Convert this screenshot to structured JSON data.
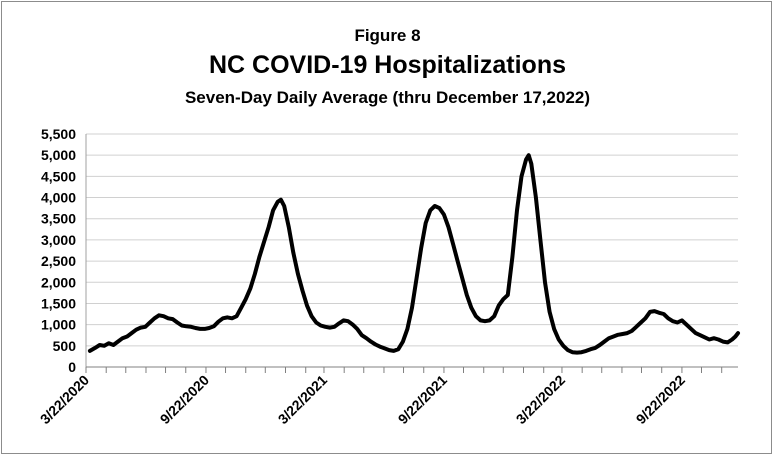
{
  "chart_data": {
    "type": "line",
    "title": "NC COVID-19 Hospitalizations",
    "figure_label": "Figure 8",
    "subtitle": "Seven-Day Daily Average (thru December 17,2022)",
    "xlabel": "",
    "ylabel": "",
    "ylim": [
      0,
      5500
    ],
    "xlim": [
      "2020-03-22",
      "2022-12-17"
    ],
    "grid": true,
    "legend": "none",
    "line_color": "#000000",
    "y_ticks": [
      "0",
      "500",
      "1,000",
      "1,500",
      "2,000",
      "2,500",
      "3,000",
      "3,500",
      "4,000",
      "4,500",
      "5,000",
      "5,500"
    ],
    "x_ticks": [
      "3/22/2020",
      "9/22/2020",
      "3/22/2021",
      "9/22/2021",
      "3/22/2022",
      "9/22/2022"
    ],
    "series": [
      {
        "points": [
          [
            "2020-03-28",
            380
          ],
          [
            "2020-04-05",
            450
          ],
          [
            "2020-04-12",
            520
          ],
          [
            "2020-04-19",
            500
          ],
          [
            "2020-04-26",
            560
          ],
          [
            "2020-05-03",
            520
          ],
          [
            "2020-05-10",
            600
          ],
          [
            "2020-05-17",
            680
          ],
          [
            "2020-05-24",
            720
          ],
          [
            "2020-05-31",
            800
          ],
          [
            "2020-06-07",
            880
          ],
          [
            "2020-06-14",
            930
          ],
          [
            "2020-06-21",
            950
          ],
          [
            "2020-06-28",
            1050
          ],
          [
            "2020-07-05",
            1150
          ],
          [
            "2020-07-12",
            1220
          ],
          [
            "2020-07-19",
            1200
          ],
          [
            "2020-07-26",
            1150
          ],
          [
            "2020-08-02",
            1130
          ],
          [
            "2020-08-09",
            1050
          ],
          [
            "2020-08-16",
            980
          ],
          [
            "2020-08-23",
            960
          ],
          [
            "2020-08-30",
            950
          ],
          [
            "2020-09-06",
            920
          ],
          [
            "2020-09-13",
            900
          ],
          [
            "2020-09-20",
            900
          ],
          [
            "2020-09-27",
            920
          ],
          [
            "2020-10-04",
            960
          ],
          [
            "2020-10-11",
            1070
          ],
          [
            "2020-10-18",
            1150
          ],
          [
            "2020-10-25",
            1170
          ],
          [
            "2020-11-01",
            1150
          ],
          [
            "2020-11-08",
            1200
          ],
          [
            "2020-11-15",
            1400
          ],
          [
            "2020-11-22",
            1600
          ],
          [
            "2020-11-29",
            1850
          ],
          [
            "2020-12-06",
            2200
          ],
          [
            "2020-12-13",
            2600
          ],
          [
            "2020-12-20",
            2950
          ],
          [
            "2020-12-27",
            3300
          ],
          [
            "2021-01-03",
            3700
          ],
          [
            "2021-01-10",
            3900
          ],
          [
            "2021-01-15",
            3950
          ],
          [
            "2021-01-20",
            3800
          ],
          [
            "2021-01-27",
            3300
          ],
          [
            "2021-02-03",
            2700
          ],
          [
            "2021-02-10",
            2200
          ],
          [
            "2021-02-17",
            1800
          ],
          [
            "2021-02-24",
            1450
          ],
          [
            "2021-03-03",
            1200
          ],
          [
            "2021-03-10",
            1050
          ],
          [
            "2021-03-17",
            980
          ],
          [
            "2021-03-24",
            950
          ],
          [
            "2021-03-31",
            930
          ],
          [
            "2021-04-07",
            950
          ],
          [
            "2021-04-14",
            1030
          ],
          [
            "2021-04-21",
            1100
          ],
          [
            "2021-04-28",
            1080
          ],
          [
            "2021-05-05",
            1000
          ],
          [
            "2021-05-12",
            900
          ],
          [
            "2021-05-19",
            750
          ],
          [
            "2021-05-26",
            680
          ],
          [
            "2021-06-02",
            600
          ],
          [
            "2021-06-09",
            530
          ],
          [
            "2021-06-16",
            480
          ],
          [
            "2021-06-23",
            440
          ],
          [
            "2021-06-30",
            400
          ],
          [
            "2021-07-07",
            380
          ],
          [
            "2021-07-14",
            420
          ],
          [
            "2021-07-21",
            600
          ],
          [
            "2021-07-28",
            900
          ],
          [
            "2021-08-04",
            1400
          ],
          [
            "2021-08-11",
            2100
          ],
          [
            "2021-08-18",
            2800
          ],
          [
            "2021-08-25",
            3400
          ],
          [
            "2021-09-01",
            3700
          ],
          [
            "2021-09-08",
            3800
          ],
          [
            "2021-09-15",
            3750
          ],
          [
            "2021-09-22",
            3600
          ],
          [
            "2021-09-29",
            3300
          ],
          [
            "2021-10-06",
            2900
          ],
          [
            "2021-10-13",
            2500
          ],
          [
            "2021-10-20",
            2100
          ],
          [
            "2021-10-27",
            1700
          ],
          [
            "2021-11-03",
            1400
          ],
          [
            "2021-11-10",
            1200
          ],
          [
            "2021-11-17",
            1100
          ],
          [
            "2021-11-24",
            1080
          ],
          [
            "2021-12-01",
            1100
          ],
          [
            "2021-12-08",
            1200
          ],
          [
            "2021-12-15",
            1450
          ],
          [
            "2021-12-22",
            1600
          ],
          [
            "2021-12-29",
            1700
          ],
          [
            "2022-01-05",
            2600
          ],
          [
            "2022-01-12",
            3700
          ],
          [
            "2022-01-19",
            4500
          ],
          [
            "2022-01-26",
            4900
          ],
          [
            "2022-01-30",
            5000
          ],
          [
            "2022-02-03",
            4800
          ],
          [
            "2022-02-10",
            4000
          ],
          [
            "2022-02-17",
            3000
          ],
          [
            "2022-02-24",
            2000
          ],
          [
            "2022-03-03",
            1300
          ],
          [
            "2022-03-10",
            900
          ],
          [
            "2022-03-17",
            650
          ],
          [
            "2022-03-24",
            500
          ],
          [
            "2022-03-31",
            400
          ],
          [
            "2022-04-07",
            350
          ],
          [
            "2022-04-14",
            340
          ],
          [
            "2022-04-21",
            350
          ],
          [
            "2022-04-28",
            380
          ],
          [
            "2022-05-05",
            420
          ],
          [
            "2022-05-12",
            450
          ],
          [
            "2022-05-19",
            520
          ],
          [
            "2022-05-26",
            600
          ],
          [
            "2022-06-02",
            680
          ],
          [
            "2022-06-09",
            720
          ],
          [
            "2022-06-16",
            760
          ],
          [
            "2022-06-23",
            780
          ],
          [
            "2022-06-30",
            800
          ],
          [
            "2022-07-07",
            850
          ],
          [
            "2022-07-14",
            950
          ],
          [
            "2022-07-21",
            1050
          ],
          [
            "2022-07-28",
            1150
          ],
          [
            "2022-08-04",
            1300
          ],
          [
            "2022-08-11",
            1320
          ],
          [
            "2022-08-18",
            1280
          ],
          [
            "2022-08-25",
            1250
          ],
          [
            "2022-09-01",
            1150
          ],
          [
            "2022-09-08",
            1080
          ],
          [
            "2022-09-15",
            1050
          ],
          [
            "2022-09-22",
            1100
          ],
          [
            "2022-09-29",
            1000
          ],
          [
            "2022-10-06",
            900
          ],
          [
            "2022-10-13",
            800
          ],
          [
            "2022-10-20",
            750
          ],
          [
            "2022-10-27",
            700
          ],
          [
            "2022-11-03",
            650
          ],
          [
            "2022-11-10",
            680
          ],
          [
            "2022-11-17",
            650
          ],
          [
            "2022-11-24",
            600
          ],
          [
            "2022-12-01",
            580
          ],
          [
            "2022-12-08",
            650
          ],
          [
            "2022-12-13",
            720
          ],
          [
            "2022-12-17",
            800
          ]
        ]
      }
    ]
  }
}
